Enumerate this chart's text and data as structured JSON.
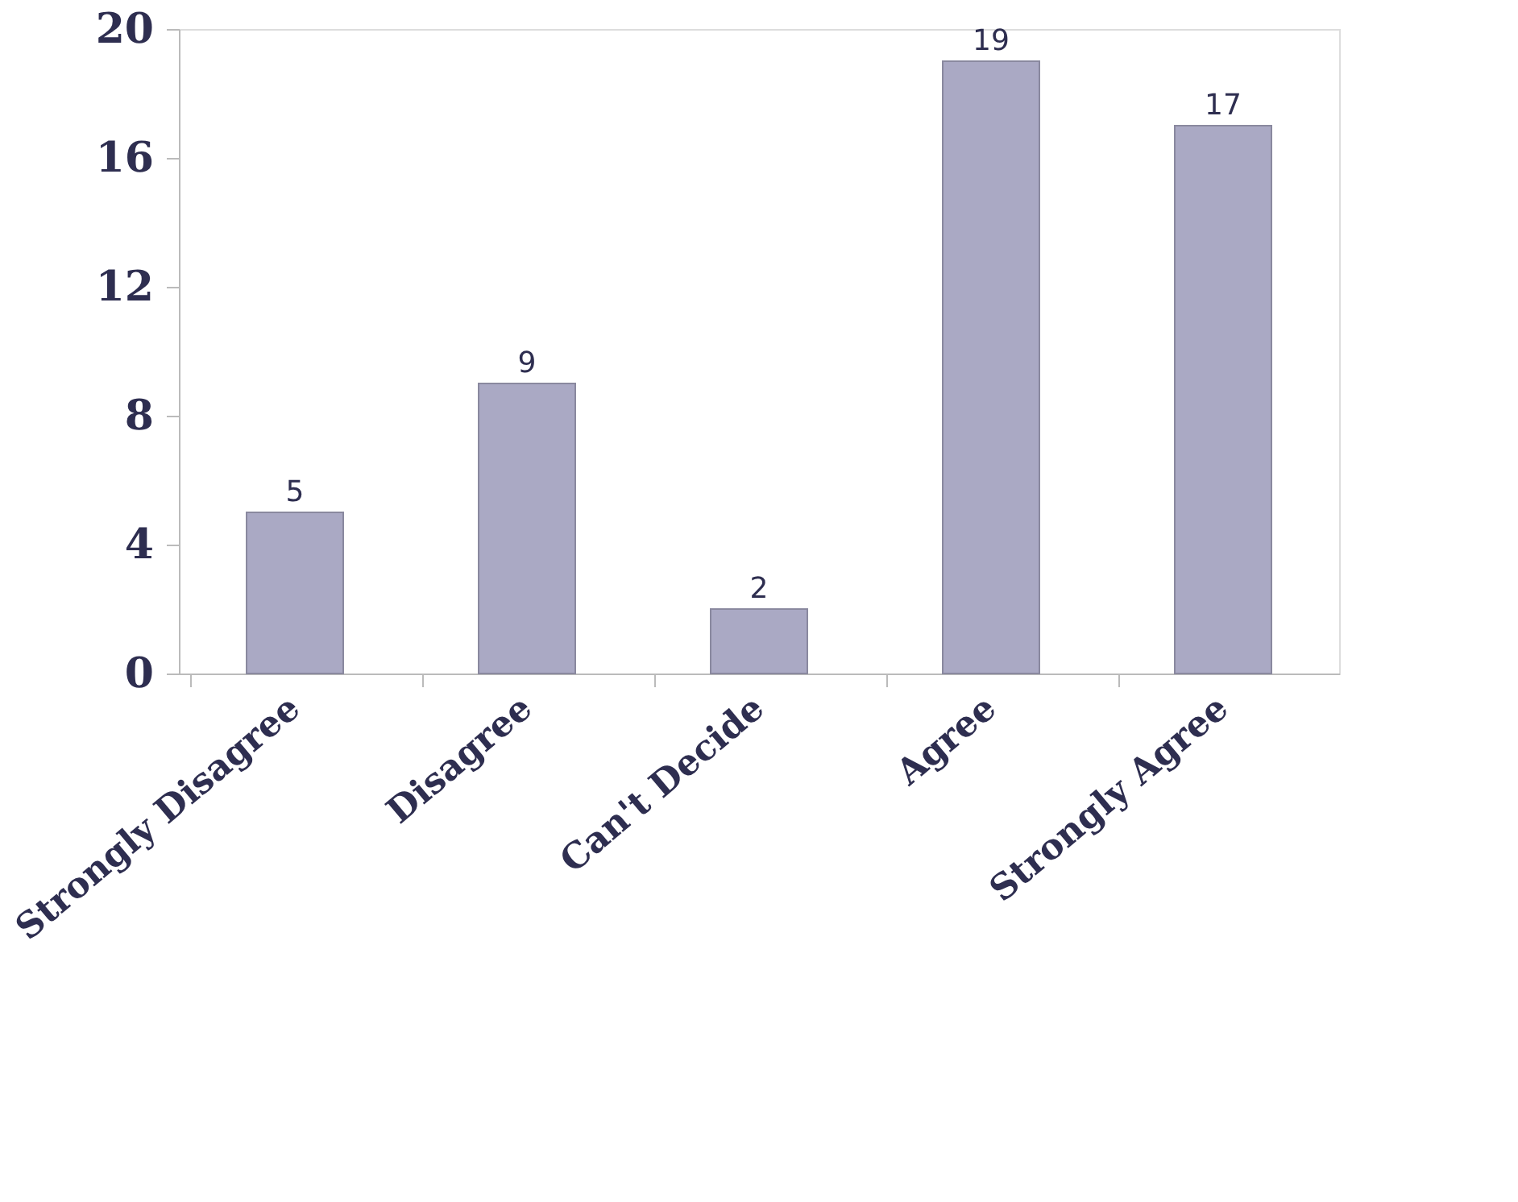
{
  "chart_data": {
    "type": "bar",
    "categories": [
      "Strongly Disagree",
      "Disagree",
      "Can't Decide",
      "Agree",
      "Strongly Agree"
    ],
    "values": [
      5,
      9,
      2,
      19,
      17
    ],
    "color": "#aaa9c4",
    "ylim": [
      0,
      20
    ],
    "yticks": [
      0,
      4,
      8,
      12,
      16,
      20
    ],
    "data_labels": true,
    "grid": false
  }
}
